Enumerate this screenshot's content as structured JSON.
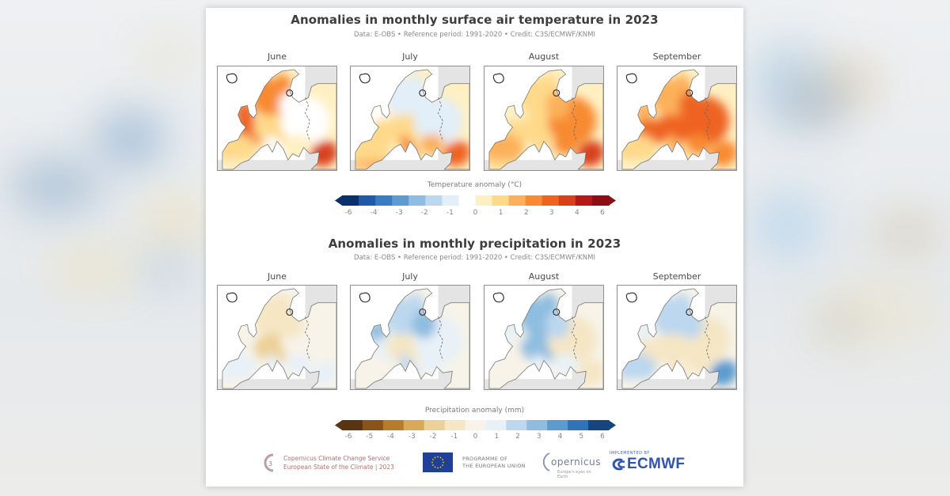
{
  "chart_data": [
    {
      "type": "heatmap",
      "title": "Anomalies in monthly surface air temperature in 2023",
      "subtitle": "Data: E-OBS • Reference period: 1991-2020 • Credit: C3S/ECMWF/KNMI",
      "variable": "Temperature anomaly (°C)",
      "panels": [
        "June",
        "July",
        "August",
        "September"
      ],
      "colorbar": {
        "label": "Temperature anomaly (°C)",
        "ticks": [
          "-6",
          "-4",
          "-3",
          "-2",
          "-1",
          "0",
          "1",
          "2",
          "3",
          "4",
          "6"
        ],
        "range": [
          -6,
          6
        ],
        "extend": "both",
        "colors": [
          "#08306b",
          "#1e5aa8",
          "#3a7cc0",
          "#5e9bd0",
          "#8dbde2",
          "#bcd8ee",
          "#e2eef8",
          "#ffffff",
          "#fff0c4",
          "#fed98a",
          "#fdb05a",
          "#f88a32",
          "#ee6320",
          "#d8401a",
          "#b51818",
          "#8c0d12"
        ]
      },
      "regional_anomalies": {
        "June": {
          "scandinavia": 2.5,
          "british_isles": 3.0,
          "france": 3.2,
          "iberia": 1.0,
          "central_europe": 0.8,
          "eastern_europe": -0.6,
          "baltics": -0.3,
          "balkans": 0.2,
          "italy": -0.2,
          "turkey": 4.0,
          "north_africa": 0.5
        },
        "July": {
          "scandinavia": -1.0,
          "british_isles": -0.5,
          "france": 1.0,
          "iberia": 1.2,
          "central_europe": 1.0,
          "eastern_europe": -0.8,
          "baltics": -1.3,
          "balkans": 1.5,
          "italy": 2.5,
          "turkey": 3.5,
          "north_africa": 1.5
        },
        "August": {
          "scandinavia": 1.2,
          "british_isles": 0.2,
          "france": 1.0,
          "iberia": 1.5,
          "central_europe": 1.2,
          "eastern_europe": 2.8,
          "baltics": 2.0,
          "balkans": 2.8,
          "italy": 1.2,
          "turkey": 3.8,
          "north_africa": 1.0
        },
        "September": {
          "scandinavia": 2.2,
          "british_isles": 2.0,
          "france": 3.2,
          "iberia": 0.8,
          "central_europe": 3.5,
          "eastern_europe": 3.2,
          "baltics": 3.6,
          "balkans": 2.8,
          "italy": 2.0,
          "turkey": 2.5,
          "north_africa": 0.6
        }
      }
    },
    {
      "type": "heatmap",
      "title": "Anomalies in monthly precipitation in 2023",
      "subtitle": "Data: E-OBS • Reference period: 1991-2020 • Credit: C3S/ECMWF/KNMI",
      "variable": "Precipitation anomaly (mm)",
      "panels": [
        "June",
        "July",
        "August",
        "September"
      ],
      "colorbar": {
        "label": "Precipitation anomaly (mm)",
        "ticks": [
          "-6",
          "-5",
          "-4",
          "-3",
          "-2",
          "-1",
          "0",
          "1",
          "2",
          "3",
          "4",
          "5",
          "6"
        ],
        "range": [
          -6,
          6
        ],
        "extend": "both",
        "colors": [
          "#5a3410",
          "#8a5418",
          "#b77b2a",
          "#d9a95a",
          "#ecd095",
          "#f5e6c4",
          "#f7f3e8",
          "#e8f1f8",
          "#bcd7ee",
          "#8ebde0",
          "#5b9bd0",
          "#2f74b8",
          "#14457f"
        ]
      },
      "regional_anomalies": {
        "June": {
          "scandinavia": -0.8,
          "british_isles": 0.0,
          "france": -0.4,
          "iberia": 1.0,
          "central_europe": -1.5,
          "eastern_europe": -0.3,
          "baltics": -0.5,
          "balkans": 1.0,
          "italy": 1.2,
          "turkey": 0.5,
          "north_africa": 0.0
        },
        "July": {
          "scandinavia": 1.8,
          "british_isles": 2.5,
          "france": 0.5,
          "iberia": -0.3,
          "central_europe": -0.6,
          "eastern_europe": 0.5,
          "baltics": 2.5,
          "balkans": 1.0,
          "italy": 2.0,
          "turkey": -0.3,
          "north_africa": 0.0
        },
        "August": {
          "scandinavia": 3.0,
          "british_isles": 1.2,
          "france": 0.3,
          "iberia": -0.3,
          "central_europe": 2.5,
          "eastern_europe": -0.6,
          "baltics": 2.2,
          "balkans": 0.5,
          "italy": 1.0,
          "turkey": -0.8,
          "north_africa": 0.0
        },
        "September": {
          "scandinavia": 2.0,
          "british_isles": 0.5,
          "france": -0.8,
          "iberia": 1.5,
          "central_europe": -0.8,
          "eastern_europe": -1.2,
          "baltics": 1.5,
          "balkans": -0.6,
          "italy": -0.8,
          "turkey": 3.5,
          "north_africa": 0.0
        }
      }
    }
  ],
  "footer": {
    "c3s_line1": "Copernicus Climate Change Service",
    "c3s_line2": "European State of the Climate | 2023",
    "eu_line1": "PROGRAMME OF",
    "eu_line2": "THE EUROPEAN UNION",
    "copernicus_word": "opernicus",
    "copernicus_tag": "Europe's eyes on Earth",
    "ecmwf_small": "IMPLEMENTED BY",
    "ecmwf_word": "ECMWF"
  }
}
